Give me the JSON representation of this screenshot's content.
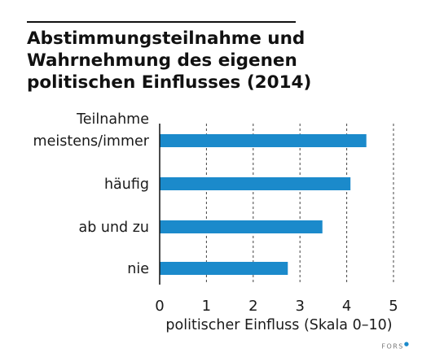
{
  "chart_data": {
    "type": "bar",
    "orientation": "horizontal",
    "title": "Abstimmungsteilnahme und Wahrnehmung des eigenen politischen Einflusses (2014)",
    "category_header": "Teilnahme",
    "categories": [
      "meistens/immer",
      "häufig",
      "ab und zu",
      "nie"
    ],
    "values": [
      4.42,
      4.08,
      3.48,
      2.74
    ],
    "xlabel": "politischer Einfluss (Skala 0–10)",
    "xlim": [
      0,
      5
    ],
    "xticks": [
      "0",
      "1",
      "2",
      "3",
      "4",
      "5"
    ],
    "grid": "vertical dashed",
    "bar_color": "#1b8acb"
  },
  "footer": {
    "logo_text": "FORS"
  }
}
